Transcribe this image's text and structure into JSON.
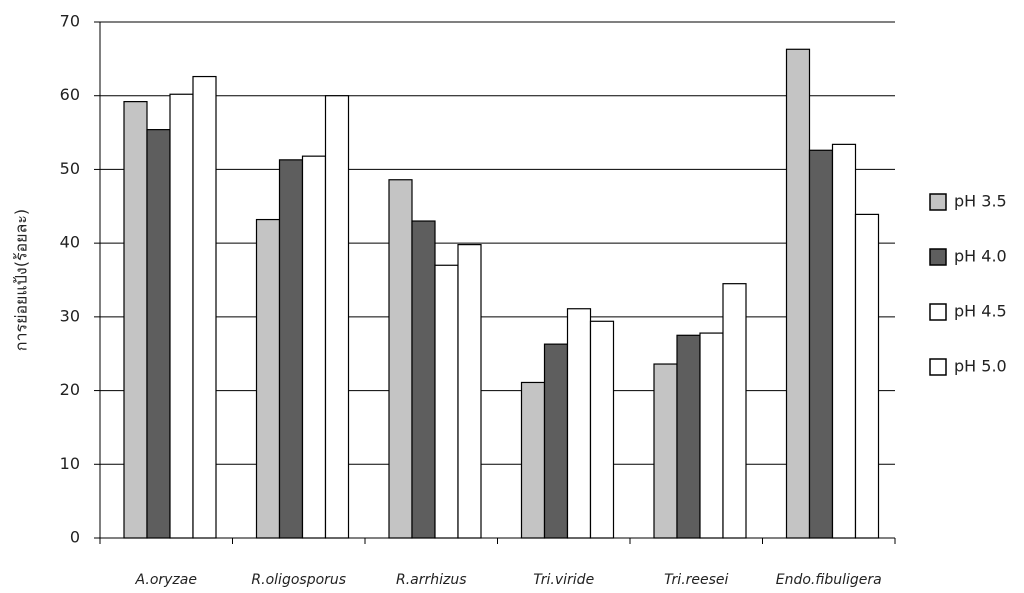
{
  "chart_data": {
    "type": "bar",
    "y_label": "การย่อยแป้ง(ร้อยละ)",
    "categories": [
      "A.oryzae",
      "R.oligosporus",
      "R.arrhizus",
      "Tri.viride",
      "Tri.reesei",
      "Endo.fibuligera"
    ],
    "series": [
      {
        "name": "pH 3.5",
        "color": "#c4c4c4",
        "values": [
          59.2,
          43.2,
          48.6,
          21.1,
          23.6,
          66.3
        ]
      },
      {
        "name": "pH 4.0",
        "color": "#5e5e5e",
        "values": [
          55.4,
          51.3,
          43.0,
          26.3,
          27.5,
          52.6
        ]
      },
      {
        "name": "pH 4.5",
        "color": "#ffffff",
        "values": [
          60.2,
          51.8,
          37.0,
          31.1,
          27.8,
          53.4
        ]
      },
      {
        "name": "pH 5.0",
        "color": "#ffffff",
        "values": [
          62.6,
          60.0,
          39.8,
          29.4,
          34.5,
          43.9
        ]
      }
    ],
    "ylim": [
      0,
      70
    ],
    "yticks": [
      0,
      10,
      20,
      30,
      40,
      50,
      60,
      70
    ],
    "grid": true,
    "legend": "right"
  }
}
